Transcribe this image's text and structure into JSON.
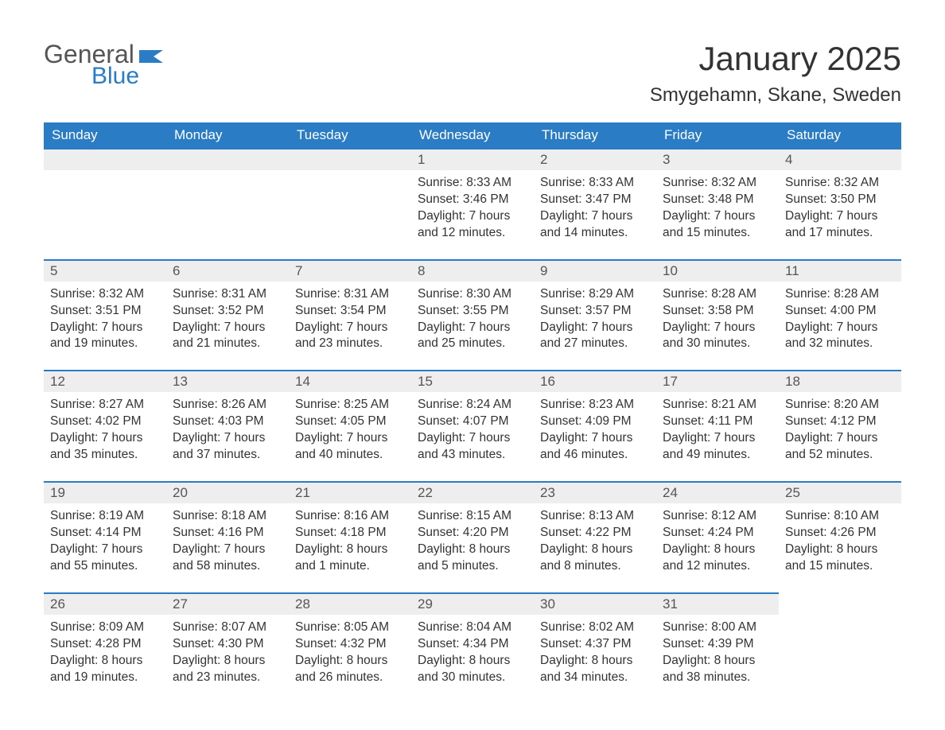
{
  "logo": {
    "text1": "General",
    "text2": "Blue",
    "flag_color": "#2a7cc4"
  },
  "title": "January 2025",
  "location": "Smygehamn, Skane, Sweden",
  "colors": {
    "header_bg": "#2a7cc4",
    "header_text": "#ffffff",
    "daynum_bg": "#eeeeee",
    "daynum_text": "#555555",
    "body_text": "#333333",
    "row_border": "#2a7cc4",
    "background": "#ffffff"
  },
  "typography": {
    "title_fontsize": 42,
    "location_fontsize": 24,
    "header_fontsize": 17,
    "daynum_fontsize": 17,
    "content_fontsize": 15.5,
    "font_family": "Arial"
  },
  "layout": {
    "columns": 7,
    "rows": 5,
    "first_weekday_index": 3
  },
  "weekdays": [
    "Sunday",
    "Monday",
    "Tuesday",
    "Wednesday",
    "Thursday",
    "Friday",
    "Saturday"
  ],
  "days": [
    {
      "n": 1,
      "sunrise": "8:33 AM",
      "sunset": "3:46 PM",
      "daylight": "7 hours and 12 minutes."
    },
    {
      "n": 2,
      "sunrise": "8:33 AM",
      "sunset": "3:47 PM",
      "daylight": "7 hours and 14 minutes."
    },
    {
      "n": 3,
      "sunrise": "8:32 AM",
      "sunset": "3:48 PM",
      "daylight": "7 hours and 15 minutes."
    },
    {
      "n": 4,
      "sunrise": "8:32 AM",
      "sunset": "3:50 PM",
      "daylight": "7 hours and 17 minutes."
    },
    {
      "n": 5,
      "sunrise": "8:32 AM",
      "sunset": "3:51 PM",
      "daylight": "7 hours and 19 minutes."
    },
    {
      "n": 6,
      "sunrise": "8:31 AM",
      "sunset": "3:52 PM",
      "daylight": "7 hours and 21 minutes."
    },
    {
      "n": 7,
      "sunrise": "8:31 AM",
      "sunset": "3:54 PM",
      "daylight": "7 hours and 23 minutes."
    },
    {
      "n": 8,
      "sunrise": "8:30 AM",
      "sunset": "3:55 PM",
      "daylight": "7 hours and 25 minutes."
    },
    {
      "n": 9,
      "sunrise": "8:29 AM",
      "sunset": "3:57 PM",
      "daylight": "7 hours and 27 minutes."
    },
    {
      "n": 10,
      "sunrise": "8:28 AM",
      "sunset": "3:58 PM",
      "daylight": "7 hours and 30 minutes."
    },
    {
      "n": 11,
      "sunrise": "8:28 AM",
      "sunset": "4:00 PM",
      "daylight": "7 hours and 32 minutes."
    },
    {
      "n": 12,
      "sunrise": "8:27 AM",
      "sunset": "4:02 PM",
      "daylight": "7 hours and 35 minutes."
    },
    {
      "n": 13,
      "sunrise": "8:26 AM",
      "sunset": "4:03 PM",
      "daylight": "7 hours and 37 minutes."
    },
    {
      "n": 14,
      "sunrise": "8:25 AM",
      "sunset": "4:05 PM",
      "daylight": "7 hours and 40 minutes."
    },
    {
      "n": 15,
      "sunrise": "8:24 AM",
      "sunset": "4:07 PM",
      "daylight": "7 hours and 43 minutes."
    },
    {
      "n": 16,
      "sunrise": "8:23 AM",
      "sunset": "4:09 PM",
      "daylight": "7 hours and 46 minutes."
    },
    {
      "n": 17,
      "sunrise": "8:21 AM",
      "sunset": "4:11 PM",
      "daylight": "7 hours and 49 minutes."
    },
    {
      "n": 18,
      "sunrise": "8:20 AM",
      "sunset": "4:12 PM",
      "daylight": "7 hours and 52 minutes."
    },
    {
      "n": 19,
      "sunrise": "8:19 AM",
      "sunset": "4:14 PM",
      "daylight": "7 hours and 55 minutes."
    },
    {
      "n": 20,
      "sunrise": "8:18 AM",
      "sunset": "4:16 PM",
      "daylight": "7 hours and 58 minutes."
    },
    {
      "n": 21,
      "sunrise": "8:16 AM",
      "sunset": "4:18 PM",
      "daylight": "8 hours and 1 minute."
    },
    {
      "n": 22,
      "sunrise": "8:15 AM",
      "sunset": "4:20 PM",
      "daylight": "8 hours and 5 minutes."
    },
    {
      "n": 23,
      "sunrise": "8:13 AM",
      "sunset": "4:22 PM",
      "daylight": "8 hours and 8 minutes."
    },
    {
      "n": 24,
      "sunrise": "8:12 AM",
      "sunset": "4:24 PM",
      "daylight": "8 hours and 12 minutes."
    },
    {
      "n": 25,
      "sunrise": "8:10 AM",
      "sunset": "4:26 PM",
      "daylight": "8 hours and 15 minutes."
    },
    {
      "n": 26,
      "sunrise": "8:09 AM",
      "sunset": "4:28 PM",
      "daylight": "8 hours and 19 minutes."
    },
    {
      "n": 27,
      "sunrise": "8:07 AM",
      "sunset": "4:30 PM",
      "daylight": "8 hours and 23 minutes."
    },
    {
      "n": 28,
      "sunrise": "8:05 AM",
      "sunset": "4:32 PM",
      "daylight": "8 hours and 26 minutes."
    },
    {
      "n": 29,
      "sunrise": "8:04 AM",
      "sunset": "4:34 PM",
      "daylight": "8 hours and 30 minutes."
    },
    {
      "n": 30,
      "sunrise": "8:02 AM",
      "sunset": "4:37 PM",
      "daylight": "8 hours and 34 minutes."
    },
    {
      "n": 31,
      "sunrise": "8:00 AM",
      "sunset": "4:39 PM",
      "daylight": "8 hours and 38 minutes."
    }
  ],
  "labels": {
    "sunrise": "Sunrise:",
    "sunset": "Sunset:",
    "daylight": "Daylight:"
  }
}
